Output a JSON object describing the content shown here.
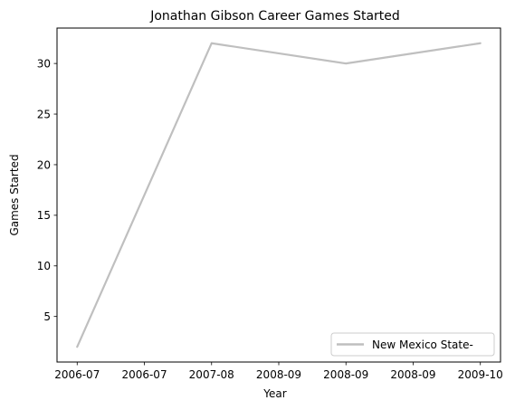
{
  "chart_data": {
    "type": "line",
    "title": "Jonathan Gibson  Career Games Started",
    "xlabel": "Year",
    "ylabel": "Games Started",
    "x_tick_labels": [
      "2006-07",
      "2006-07",
      "2007-08",
      "2008-09",
      "2008-09",
      "2008-09",
      "2009-10"
    ],
    "x_tick_values": [
      0,
      0.5,
      1,
      1.5,
      2,
      2.5,
      3
    ],
    "y_ticks": [
      5,
      10,
      15,
      20,
      25,
      30
    ],
    "xlim": [
      -0.15,
      3.15
    ],
    "ylim": [
      0.5,
      33.5
    ],
    "grid": false,
    "legend_position": "lower right",
    "series": [
      {
        "name": "New Mexico State-",
        "color": "#bfbfbf",
        "categories": [
          "2006-07",
          "2007-08",
          "2008-09",
          "2009-10"
        ],
        "values": [
          2,
          32,
          30,
          32
        ]
      }
    ]
  }
}
